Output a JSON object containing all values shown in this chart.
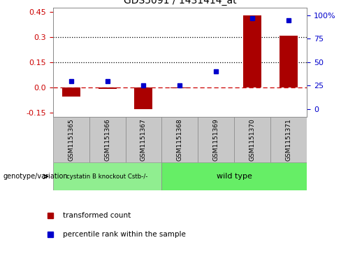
{
  "title": "GDS5091 / 1431414_at",
  "samples": [
    "GSM1151365",
    "GSM1151366",
    "GSM1151367",
    "GSM1151368",
    "GSM1151369",
    "GSM1151370",
    "GSM1151371"
  ],
  "bar_values": [
    -0.055,
    -0.01,
    -0.13,
    -0.005,
    0.0,
    0.43,
    0.31
  ],
  "dot_values_pct": [
    30,
    30,
    25,
    25,
    40,
    97,
    95
  ],
  "bar_color": "#aa0000",
  "dot_color": "#0000cc",
  "ylim_left": [
    -0.175,
    0.475
  ],
  "ylim_right": [
    -8.33,
    108.33
  ],
  "yticks_left": [
    -0.15,
    0.0,
    0.15,
    0.3,
    0.45
  ],
  "yticks_right": [
    0,
    25,
    50,
    75,
    100
  ],
  "dotted_line_y": [
    0.15,
    0.3
  ],
  "dashed_zero_color": "#cc0000",
  "group1_label": "cystatin B knockout Cstb-/-",
  "group2_label": "wild type",
  "group1_color": "#90ee90",
  "group2_color": "#66ee66",
  "genotype_label": "genotype/variation",
  "legend_bar_label": "transformed count",
  "legend_dot_label": "percentile rank within the sample",
  "tick_color_left": "#cc0000",
  "tick_color_right": "#0000cc",
  "plot_bg": "#ffffff",
  "box_bg": "#c8c8c8"
}
